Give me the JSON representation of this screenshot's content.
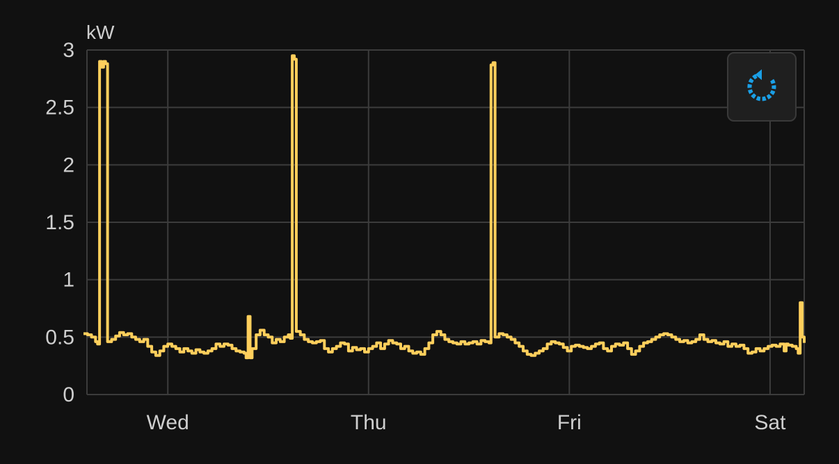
{
  "chart_data": {
    "type": "line",
    "unit_label": "kW",
    "ylim": [
      0,
      3
    ],
    "y_ticks": [
      {
        "value": 0,
        "label": "0"
      },
      {
        "value": 0.5,
        "label": "0.5"
      },
      {
        "value": 1,
        "label": "1"
      },
      {
        "value": 1.5,
        "label": "1.5"
      },
      {
        "value": 2,
        "label": "2"
      },
      {
        "value": 2.5,
        "label": "2.5"
      },
      {
        "value": 3,
        "label": "3"
      }
    ],
    "x_domain": [
      0.58,
      4.17
    ],
    "x_units": "days since Tue 00:00",
    "x_ticks": [
      {
        "value": 1,
        "label": "Wed"
      },
      {
        "value": 2,
        "label": "Thu"
      },
      {
        "value": 3,
        "label": "Fri"
      },
      {
        "value": 4,
        "label": "Sat"
      }
    ],
    "grid": true,
    "line_color": "#ffcf5c",
    "series": [
      {
        "points": [
          [
            0.58,
            0.53
          ],
          [
            0.6,
            0.52
          ],
          [
            0.62,
            0.5
          ],
          [
            0.64,
            0.46
          ],
          [
            0.65,
            0.44
          ],
          [
            0.66,
            2.9
          ],
          [
            0.67,
            2.85
          ],
          [
            0.68,
            2.9
          ],
          [
            0.69,
            2.88
          ],
          [
            0.7,
            0.46
          ],
          [
            0.72,
            0.48
          ],
          [
            0.74,
            0.51
          ],
          [
            0.76,
            0.54
          ],
          [
            0.78,
            0.52
          ],
          [
            0.8,
            0.53
          ],
          [
            0.82,
            0.5
          ],
          [
            0.84,
            0.48
          ],
          [
            0.86,
            0.46
          ],
          [
            0.88,
            0.48
          ],
          [
            0.9,
            0.42
          ],
          [
            0.92,
            0.37
          ],
          [
            0.94,
            0.34
          ],
          [
            0.96,
            0.38
          ],
          [
            0.98,
            0.42
          ],
          [
            1.0,
            0.44
          ],
          [
            1.02,
            0.42
          ],
          [
            1.04,
            0.4
          ],
          [
            1.06,
            0.37
          ],
          [
            1.08,
            0.4
          ],
          [
            1.1,
            0.38
          ],
          [
            1.12,
            0.36
          ],
          [
            1.14,
            0.39
          ],
          [
            1.16,
            0.37
          ],
          [
            1.18,
            0.36
          ],
          [
            1.2,
            0.38
          ],
          [
            1.22,
            0.4
          ],
          [
            1.24,
            0.44
          ],
          [
            1.26,
            0.42
          ],
          [
            1.28,
            0.44
          ],
          [
            1.3,
            0.43
          ],
          [
            1.32,
            0.4
          ],
          [
            1.34,
            0.38
          ],
          [
            1.36,
            0.37
          ],
          [
            1.38,
            0.36
          ],
          [
            1.39,
            0.32
          ],
          [
            1.4,
            0.68
          ],
          [
            1.41,
            0.32
          ],
          [
            1.42,
            0.4
          ],
          [
            1.44,
            0.52
          ],
          [
            1.46,
            0.56
          ],
          [
            1.48,
            0.52
          ],
          [
            1.5,
            0.5
          ],
          [
            1.52,
            0.45
          ],
          [
            1.54,
            0.48
          ],
          [
            1.56,
            0.46
          ],
          [
            1.58,
            0.5
          ],
          [
            1.6,
            0.52
          ],
          [
            1.61,
            0.49
          ],
          [
            1.62,
            2.95
          ],
          [
            1.63,
            2.92
          ],
          [
            1.64,
            0.55
          ],
          [
            1.66,
            0.52
          ],
          [
            1.68,
            0.48
          ],
          [
            1.7,
            0.46
          ],
          [
            1.72,
            0.45
          ],
          [
            1.74,
            0.46
          ],
          [
            1.76,
            0.47
          ],
          [
            1.78,
            0.4
          ],
          [
            1.8,
            0.37
          ],
          [
            1.82,
            0.4
          ],
          [
            1.84,
            0.42
          ],
          [
            1.86,
            0.45
          ],
          [
            1.88,
            0.44
          ],
          [
            1.9,
            0.38
          ],
          [
            1.92,
            0.41
          ],
          [
            1.94,
            0.39
          ],
          [
            1.96,
            0.4
          ],
          [
            1.98,
            0.37
          ],
          [
            2.0,
            0.4
          ],
          [
            2.02,
            0.42
          ],
          [
            2.04,
            0.45
          ],
          [
            2.06,
            0.4
          ],
          [
            2.08,
            0.44
          ],
          [
            2.1,
            0.47
          ],
          [
            2.12,
            0.45
          ],
          [
            2.14,
            0.44
          ],
          [
            2.16,
            0.4
          ],
          [
            2.18,
            0.42
          ],
          [
            2.2,
            0.38
          ],
          [
            2.22,
            0.36
          ],
          [
            2.24,
            0.37
          ],
          [
            2.26,
            0.35
          ],
          [
            2.28,
            0.4
          ],
          [
            2.3,
            0.45
          ],
          [
            2.32,
            0.52
          ],
          [
            2.34,
            0.55
          ],
          [
            2.36,
            0.52
          ],
          [
            2.38,
            0.48
          ],
          [
            2.4,
            0.46
          ],
          [
            2.42,
            0.45
          ],
          [
            2.44,
            0.44
          ],
          [
            2.46,
            0.46
          ],
          [
            2.48,
            0.44
          ],
          [
            2.5,
            0.45
          ],
          [
            2.52,
            0.46
          ],
          [
            2.54,
            0.44
          ],
          [
            2.56,
            0.47
          ],
          [
            2.58,
            0.46
          ],
          [
            2.6,
            0.45
          ],
          [
            2.61,
            2.87
          ],
          [
            2.62,
            2.89
          ],
          [
            2.63,
            0.5
          ],
          [
            2.65,
            0.53
          ],
          [
            2.67,
            0.52
          ],
          [
            2.69,
            0.5
          ],
          [
            2.71,
            0.48
          ],
          [
            2.73,
            0.45
          ],
          [
            2.75,
            0.42
          ],
          [
            2.77,
            0.38
          ],
          [
            2.79,
            0.35
          ],
          [
            2.81,
            0.34
          ],
          [
            2.83,
            0.36
          ],
          [
            2.85,
            0.38
          ],
          [
            2.87,
            0.4
          ],
          [
            2.89,
            0.44
          ],
          [
            2.91,
            0.46
          ],
          [
            2.93,
            0.45
          ],
          [
            2.95,
            0.44
          ],
          [
            2.97,
            0.41
          ],
          [
            2.99,
            0.38
          ],
          [
            3.01,
            0.42
          ],
          [
            3.03,
            0.43
          ],
          [
            3.05,
            0.42
          ],
          [
            3.07,
            0.41
          ],
          [
            3.09,
            0.4
          ],
          [
            3.11,
            0.42
          ],
          [
            3.13,
            0.44
          ],
          [
            3.15,
            0.45
          ],
          [
            3.17,
            0.4
          ],
          [
            3.19,
            0.38
          ],
          [
            3.21,
            0.42
          ],
          [
            3.23,
            0.44
          ],
          [
            3.25,
            0.43
          ],
          [
            3.27,
            0.45
          ],
          [
            3.29,
            0.4
          ],
          [
            3.31,
            0.35
          ],
          [
            3.33,
            0.38
          ],
          [
            3.35,
            0.42
          ],
          [
            3.37,
            0.45
          ],
          [
            3.39,
            0.46
          ],
          [
            3.41,
            0.48
          ],
          [
            3.43,
            0.5
          ],
          [
            3.45,
            0.52
          ],
          [
            3.47,
            0.53
          ],
          [
            3.49,
            0.52
          ],
          [
            3.51,
            0.5
          ],
          [
            3.53,
            0.48
          ],
          [
            3.55,
            0.46
          ],
          [
            3.57,
            0.47
          ],
          [
            3.59,
            0.45
          ],
          [
            3.61,
            0.46
          ],
          [
            3.63,
            0.48
          ],
          [
            3.65,
            0.52
          ],
          [
            3.67,
            0.48
          ],
          [
            3.69,
            0.46
          ],
          [
            3.71,
            0.47
          ],
          [
            3.73,
            0.45
          ],
          [
            3.75,
            0.44
          ],
          [
            3.77,
            0.46
          ],
          [
            3.79,
            0.42
          ],
          [
            3.81,
            0.44
          ],
          [
            3.83,
            0.42
          ],
          [
            3.85,
            0.43
          ],
          [
            3.87,
            0.4
          ],
          [
            3.89,
            0.36
          ],
          [
            3.91,
            0.37
          ],
          [
            3.93,
            0.4
          ],
          [
            3.95,
            0.38
          ],
          [
            3.97,
            0.4
          ],
          [
            3.99,
            0.42
          ],
          [
            4.01,
            0.43
          ],
          [
            4.03,
            0.42
          ],
          [
            4.05,
            0.44
          ],
          [
            4.07,
            0.38
          ],
          [
            4.08,
            0.44
          ],
          [
            4.09,
            0.43
          ],
          [
            4.11,
            0.42
          ],
          [
            4.13,
            0.4
          ],
          [
            4.14,
            0.36
          ],
          [
            4.15,
            0.8
          ],
          [
            4.16,
            0.5
          ],
          [
            4.17,
            0.45
          ]
        ]
      }
    ]
  },
  "reset_button": {
    "icon": "reset-zoom-icon",
    "color": "#1a9fe6"
  }
}
